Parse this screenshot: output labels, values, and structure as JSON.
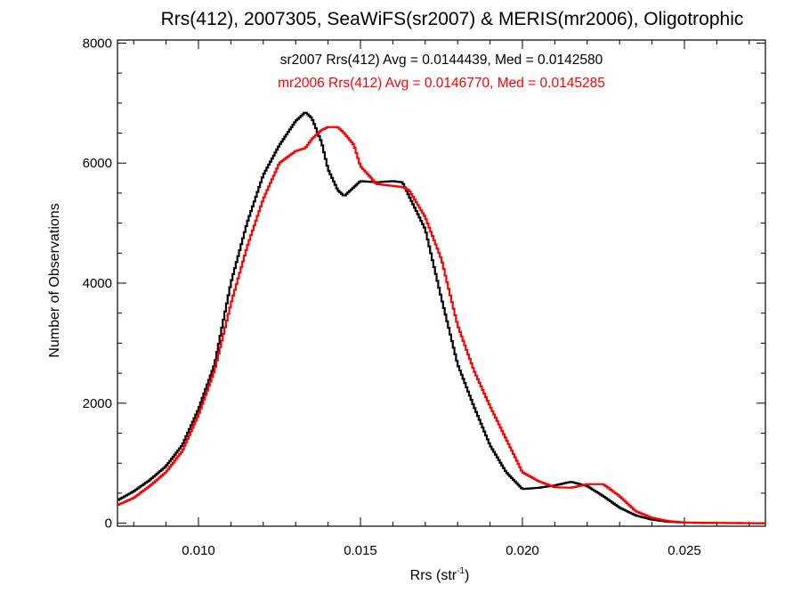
{
  "chart_data": {
    "type": "line",
    "title": "Rrs(412), 2007305, SeaWiFS(sr2007) & MERIS(mr2006), Oligotrophic",
    "xlabel": {
      "prefix": "Rrs (str",
      "sup": "-1",
      "suffix": ")"
    },
    "ylabel": "Number of Observations",
    "xlim": [
      0.0075,
      0.0275
    ],
    "ylim": [
      -50,
      8050
    ],
    "xticks": [
      {
        "value": 0.01,
        "label": "0.010"
      },
      {
        "value": 0.015,
        "label": "0.015"
      },
      {
        "value": 0.02,
        "label": "0.020"
      },
      {
        "value": 0.025,
        "label": "0.025"
      }
    ],
    "yticks": [
      {
        "value": 0,
        "label": "0"
      },
      {
        "value": 2000,
        "label": "2000"
      },
      {
        "value": 4000,
        "label": "4000"
      },
      {
        "value": 6000,
        "label": "6000"
      },
      {
        "value": 8000,
        "label": "8000"
      }
    ],
    "grid": false,
    "legend": "none",
    "annotations": [
      {
        "text": "sr2007 Rrs(412) Avg = 0.0144439, Med = 0.0142580",
        "color": "#000000"
      },
      {
        "text": "mr2006 Rrs(412) Avg = 0.0146770, Med = 0.0145285",
        "color": "#ff0000"
      }
    ],
    "x": [
      0.0075,
      0.008,
      0.0085,
      0.009,
      0.0095,
      0.01,
      0.0105,
      0.011,
      0.0115,
      0.012,
      0.0125,
      0.013,
      0.0133,
      0.0135,
      0.0138,
      0.014,
      0.0143,
      0.0145,
      0.0148,
      0.015,
      0.0155,
      0.016,
      0.0163,
      0.0165,
      0.017,
      0.0175,
      0.018,
      0.0185,
      0.019,
      0.0195,
      0.02,
      0.0205,
      0.021,
      0.0215,
      0.022,
      0.0225,
      0.023,
      0.0235,
      0.024,
      0.0245,
      0.025,
      0.026,
      0.0275
    ],
    "series": [
      {
        "name": "sr2007",
        "color": "#000000",
        "values": [
          380,
          530,
          720,
          950,
          1300,
          1900,
          2650,
          4000,
          5000,
          5800,
          6300,
          6700,
          6850,
          6750,
          6350,
          5900,
          5550,
          5450,
          5600,
          5700,
          5680,
          5700,
          5680,
          5450,
          4900,
          3750,
          2650,
          1950,
          1300,
          850,
          570,
          590,
          630,
          690,
          620,
          450,
          260,
          130,
          60,
          25,
          10,
          3,
          0
        ]
      },
      {
        "name": "mr2006",
        "color": "#ff0000",
        "values": [
          300,
          420,
          620,
          850,
          1200,
          1800,
          2550,
          3650,
          4600,
          5400,
          6000,
          6200,
          6250,
          6400,
          6550,
          6600,
          6600,
          6500,
          6300,
          5950,
          5650,
          5620,
          5600,
          5550,
          5100,
          4400,
          3300,
          2550,
          1950,
          1400,
          850,
          700,
          600,
          590,
          650,
          650,
          450,
          200,
          90,
          35,
          12,
          4,
          0
        ]
      }
    ]
  }
}
